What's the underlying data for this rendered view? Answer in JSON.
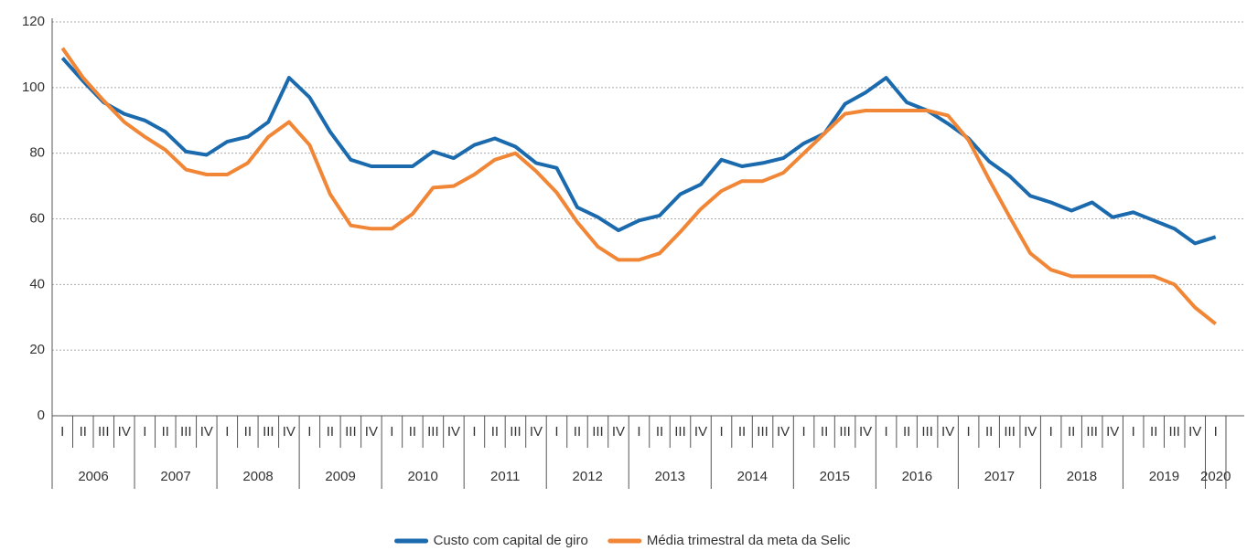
{
  "chart_data": {
    "type": "line",
    "categories": [
      "I",
      "II",
      "III",
      "IV",
      "I",
      "II",
      "III",
      "IV",
      "I",
      "II",
      "III",
      "IV",
      "I",
      "II",
      "III",
      "IV",
      "I",
      "II",
      "III",
      "IV",
      "I",
      "II",
      "III",
      "IV",
      "I",
      "II",
      "III",
      "IV",
      "I",
      "II",
      "III",
      "IV",
      "I",
      "II",
      "III",
      "IV",
      "I",
      "II",
      "III",
      "IV",
      "I",
      "II",
      "III",
      "IV",
      "I",
      "II",
      "III",
      "IV",
      "I",
      "II",
      "III",
      "IV",
      "I",
      "II",
      "III",
      "IV",
      "I"
    ],
    "years": [
      "2006",
      "2007",
      "2008",
      "2009",
      "2010",
      "2011",
      "2012",
      "2013",
      "2014",
      "2015",
      "2016",
      "2017",
      "2018",
      "2019",
      "2020"
    ],
    "series": [
      {
        "name": "Custo com capital de giro",
        "color": "#1a6aad",
        "values": [
          109,
          102,
          95.5,
          92,
          90,
          86.5,
          80.5,
          79.5,
          83.5,
          85,
          89.5,
          103,
          97,
          86.5,
          78,
          76,
          76,
          76,
          80.5,
          78.5,
          82.5,
          84.5,
          82,
          77,
          75.5,
          63.5,
          60.5,
          56.5,
          59.5,
          61,
          67.5,
          70.5,
          78,
          76,
          77,
          78.5,
          83,
          86,
          95,
          98.5,
          103,
          95.5,
          93,
          89,
          84.5,
          77.5,
          73,
          67,
          65,
          62.5,
          65,
          60.5,
          62,
          59.5,
          57,
          52.5,
          54.5
        ]
      },
      {
        "name": "Média trimestral da meta da Selic",
        "color": "#f08636",
        "values": [
          112,
          103,
          96,
          89.5,
          85,
          81,
          75,
          73.5,
          73.5,
          77,
          85,
          89.5,
          82.5,
          67.5,
          58,
          57,
          57,
          61.5,
          69.5,
          70,
          73.5,
          78,
          80,
          74.5,
          68,
          59,
          51.5,
          47.5,
          47.5,
          49.5,
          56,
          63,
          68.5,
          71.5,
          71.5,
          74,
          80,
          86,
          92,
          93,
          93,
          93,
          93,
          91.5,
          84,
          72,
          60.5,
          49.5,
          44.5,
          42.5,
          42.5,
          42.5,
          42.5,
          42.5,
          40,
          33,
          28
        ]
      }
    ],
    "ylim": [
      0,
      120
    ],
    "yticks": [
      0,
      20,
      40,
      60,
      80,
      100,
      120
    ],
    "grid": true
  }
}
